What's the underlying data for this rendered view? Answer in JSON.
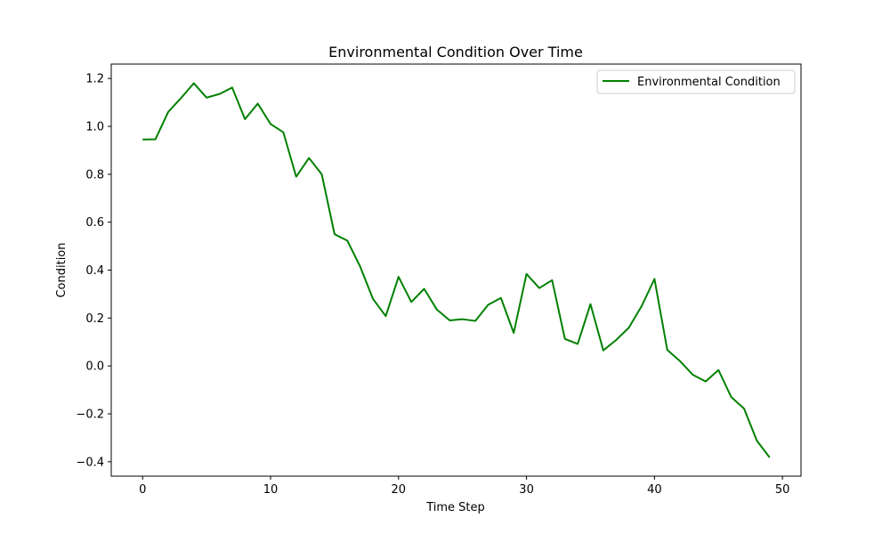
{
  "chart_data": {
    "type": "line",
    "title": "Environmental Condition Over Time",
    "xlabel": "Time Step",
    "ylabel": "Condition",
    "xlim": [
      -2.45,
      51.45
    ],
    "ylim": [
      -0.46,
      1.26
    ],
    "x_ticks": [
      0,
      10,
      20,
      30,
      40,
      50
    ],
    "x_tick_labels": [
      "0",
      "10",
      "20",
      "30",
      "40",
      "50"
    ],
    "y_ticks": [
      -0.4,
      -0.2,
      0.0,
      0.2,
      0.4,
      0.6,
      0.8,
      1.0,
      1.2
    ],
    "y_tick_labels": [
      "−0.4",
      "−0.2",
      "0.0",
      "0.2",
      "0.4",
      "0.6",
      "0.8",
      "1.0",
      "1.2"
    ],
    "grid": false,
    "legend_position": "top-right",
    "series": [
      {
        "name": "Environmental Condition",
        "color": "#008000",
        "x": [
          0,
          1,
          2,
          3,
          4,
          5,
          6,
          7,
          8,
          9,
          10,
          11,
          12,
          13,
          14,
          15,
          16,
          17,
          18,
          19,
          20,
          21,
          22,
          23,
          24,
          25,
          26,
          27,
          28,
          29,
          30,
          31,
          32,
          33,
          34,
          35,
          36,
          37,
          38,
          39,
          40,
          41,
          42,
          43,
          44,
          45,
          46,
          47,
          48,
          49
        ],
        "y": [
          0.945,
          0.946,
          1.06,
          1.118,
          1.18,
          1.12,
          1.135,
          1.162,
          1.03,
          1.095,
          1.01,
          0.975,
          0.79,
          0.868,
          0.8,
          0.55,
          0.523,
          0.415,
          0.28,
          0.208,
          0.372,
          0.267,
          0.322,
          0.235,
          0.19,
          0.195,
          0.188,
          0.255,
          0.284,
          0.138,
          0.384,
          0.325,
          0.358,
          0.113,
          0.092,
          0.258,
          0.065,
          0.108,
          0.16,
          0.25,
          0.363,
          0.067,
          0.02,
          -0.037,
          -0.065,
          -0.017,
          -0.13,
          -0.178,
          -0.312,
          -0.382
        ]
      }
    ]
  }
}
